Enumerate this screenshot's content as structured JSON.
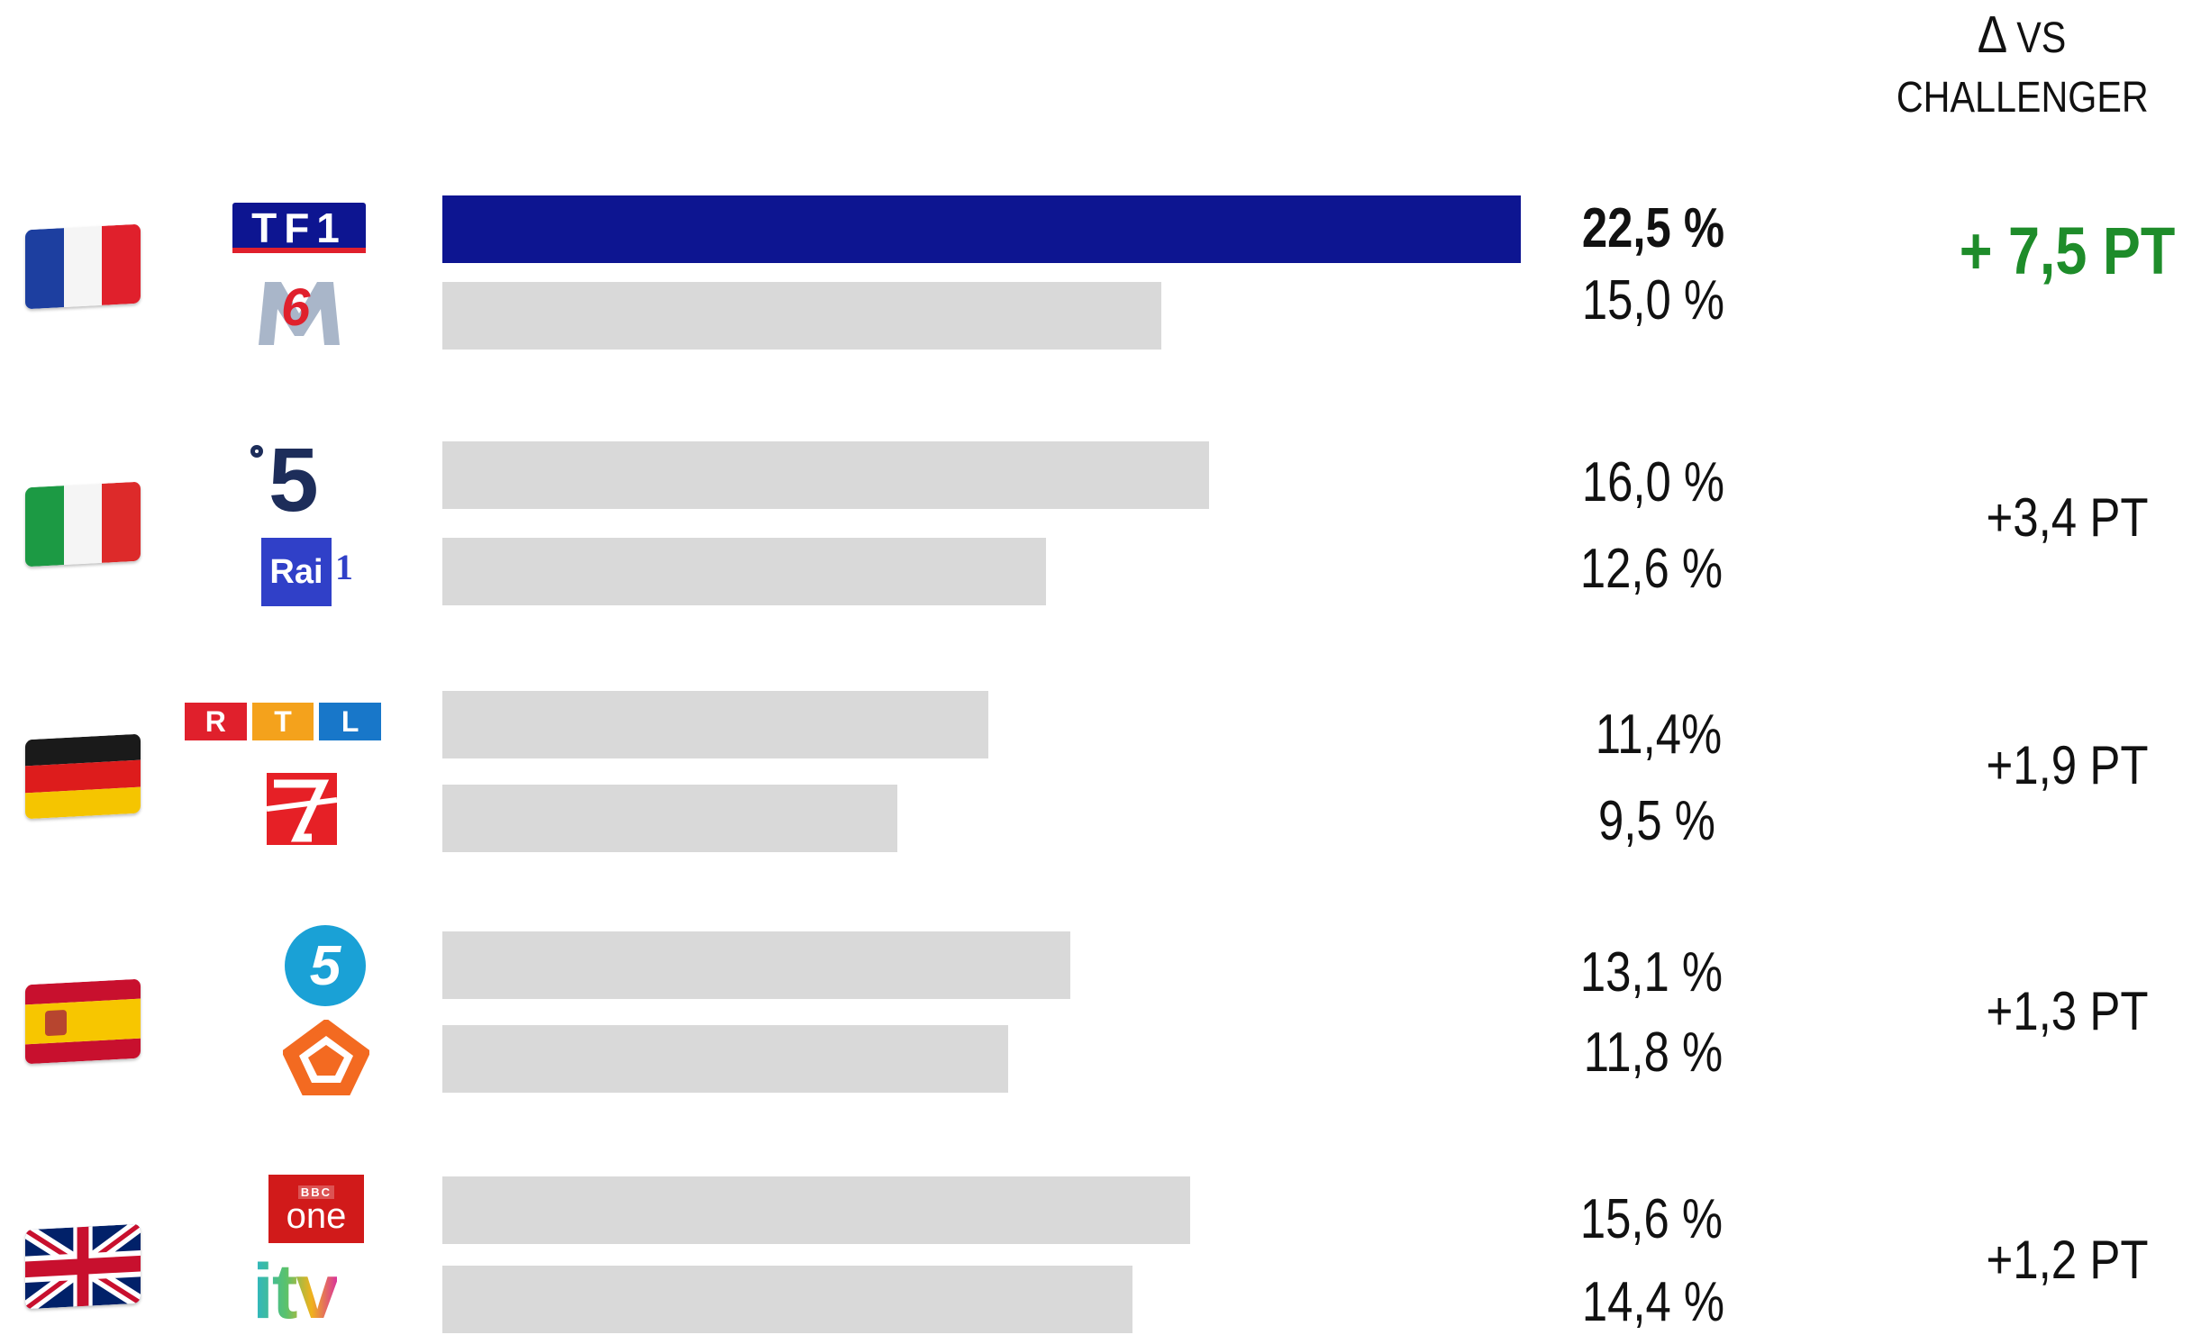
{
  "header": {
    "delta_symbol": "∆",
    "line1": "VS",
    "line2": "CHALLENGER"
  },
  "colors": {
    "highlight_bar": "#0d1591",
    "other_bar": "#d9d9d9",
    "positive_delta": "#1e8c2a"
  },
  "chart_data": {
    "type": "bar",
    "orientation": "horizontal",
    "unit": "%",
    "countries": [
      {
        "flag": "france-flag-icon",
        "channels": [
          {
            "logo": "tf1-logo-icon",
            "value": 22.5,
            "label": "22,5 %",
            "highlight": true
          },
          {
            "logo": "m6-logo-icon",
            "value": 15.0,
            "label": "15,0 %"
          }
        ],
        "delta": "+ 7,5  PT"
      },
      {
        "flag": "italy-flag-icon",
        "channels": [
          {
            "logo": "canale5-logo-icon",
            "value": 16.0,
            "label": "16,0 %"
          },
          {
            "logo": "rai1-logo-icon",
            "value": 12.6,
            "label": "12,6 %"
          }
        ],
        "delta": "+3,4 PT"
      },
      {
        "flag": "germany-flag-icon",
        "channels": [
          {
            "logo": "rtl-logo-icon",
            "value": 11.4,
            "label": "11,4%"
          },
          {
            "logo": "prosieben-logo-icon",
            "value": 9.5,
            "label": "9,5 %"
          }
        ],
        "delta": "+1,9 PT"
      },
      {
        "flag": "spain-flag-icon",
        "channels": [
          {
            "logo": "telecinco-logo-icon",
            "value": 13.1,
            "label": "13,1 %"
          },
          {
            "logo": "antena3-logo-icon",
            "value": 11.8,
            "label": "11,8 %"
          }
        ],
        "delta": "+1,3 PT"
      },
      {
        "flag": "uk-flag-icon",
        "channels": [
          {
            "logo": "bbc-one-logo-icon",
            "value": 15.6,
            "label": "15,6 %"
          },
          {
            "logo": "itv-logo-icon",
            "value": 14.4,
            "label": "14,4 %"
          }
        ],
        "delta": "+1,2 PT"
      }
    ]
  },
  "logos": {
    "tf1": "TF1",
    "m6": "6",
    "canale5": "5",
    "rai": "Rai",
    "rai_num": "1",
    "rtl": [
      "R",
      "T",
      "L"
    ],
    "telecinco": "5",
    "bbc": "BBC",
    "one": "one",
    "itv": "itv"
  }
}
